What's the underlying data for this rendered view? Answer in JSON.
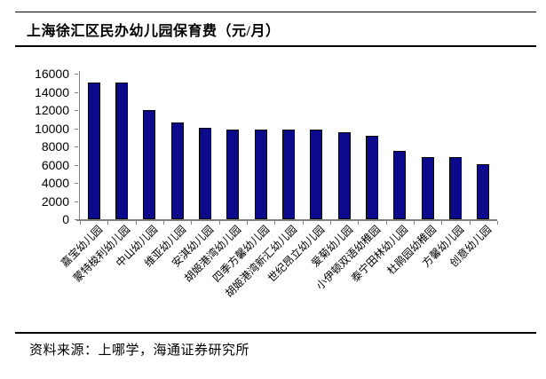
{
  "header": {
    "title": "上海徐汇区民办幼儿园保育费（元/月）"
  },
  "footer": {
    "source": "资料来源：上哪学，海通证券研究所"
  },
  "chart_data": {
    "type": "bar",
    "title": "上海徐汇区民办幼儿园保育费（元/月）",
    "unit": "元/月",
    "categories": [
      "嘉宝幼儿园",
      "蒙特梭利幼儿园",
      "中山幼儿园",
      "维亚幼儿园",
      "安淇幼儿园",
      "胡姬港湾幼儿园",
      "四季方馨幼儿园",
      "胡姬港湾新汇幼儿园",
      "世纪昂立幼儿园",
      "爱菊幼儿园",
      "小伊顿双语幼稚园",
      "泰宁田林幼儿园",
      "杜鹃园幼稚园",
      "方馨幼儿园",
      "创意幼儿园"
    ],
    "values": [
      15000,
      15000,
      12000,
      10600,
      10000,
      9900,
      9900,
      9900,
      9900,
      9600,
      9200,
      7500,
      6800,
      6800,
      6000
    ],
    "xlabel": "",
    "ylabel": "",
    "ylim": [
      0,
      16000
    ],
    "yticks": [
      0,
      2000,
      4000,
      6000,
      8000,
      10000,
      12000,
      14000,
      16000
    ],
    "grid": false,
    "legend": "none",
    "bar_color": "#0a0a8a",
    "bar_border_color": "#000000",
    "axis_color": "#808080",
    "source": "资料来源：上哪学，海通证券研究所"
  }
}
